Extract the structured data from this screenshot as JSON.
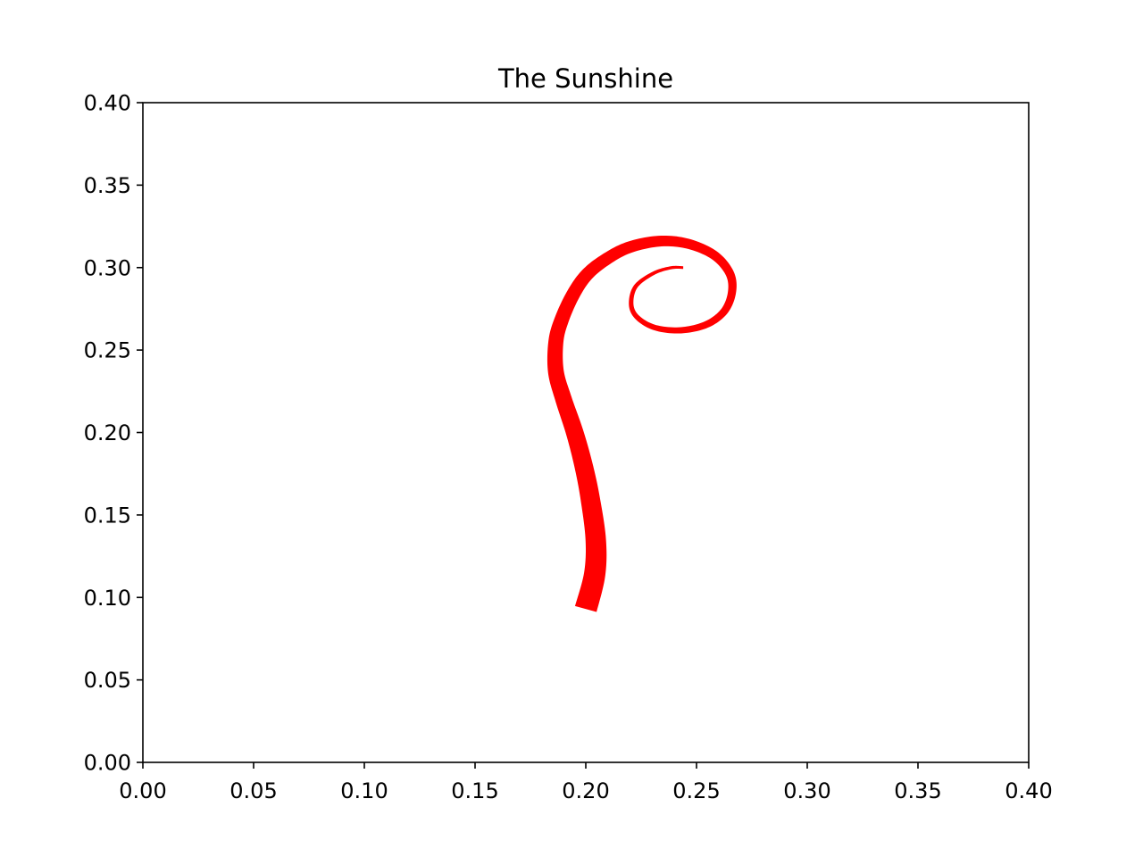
{
  "chart_data": {
    "type": "line",
    "title": "The Sunshine",
    "xlabel": "",
    "ylabel": "",
    "xlim": [
      0.0,
      0.4
    ],
    "ylim": [
      0.0,
      0.4
    ],
    "x_ticks": [
      "0.00",
      "0.05",
      "0.10",
      "0.15",
      "0.20",
      "0.25",
      "0.30",
      "0.35",
      "0.40"
    ],
    "y_ticks": [
      "0.00",
      "0.05",
      "0.10",
      "0.15",
      "0.20",
      "0.25",
      "0.30",
      "0.35",
      "0.40"
    ],
    "grid": false,
    "legend": "none",
    "series": [
      {
        "color": "#ff0000",
        "style": "variable-width stroke, thick at start tapering to thin at end",
        "points": [
          [
            0.2,
            0.093
          ],
          [
            0.204,
            0.114
          ],
          [
            0.2045,
            0.135
          ],
          [
            0.202,
            0.16
          ],
          [
            0.199,
            0.18
          ],
          [
            0.195,
            0.2
          ],
          [
            0.19,
            0.22
          ],
          [
            0.1865,
            0.237
          ],
          [
            0.1865,
            0.255
          ],
          [
            0.189,
            0.268
          ],
          [
            0.194,
            0.283
          ],
          [
            0.2,
            0.295
          ],
          [
            0.208,
            0.304
          ],
          [
            0.219,
            0.312
          ],
          [
            0.233,
            0.316
          ],
          [
            0.246,
            0.3145
          ],
          [
            0.258,
            0.3075
          ],
          [
            0.265,
            0.2965
          ],
          [
            0.266,
            0.285
          ],
          [
            0.2625,
            0.2735
          ],
          [
            0.2545,
            0.2655
          ],
          [
            0.243,
            0.262
          ],
          [
            0.2315,
            0.2635
          ],
          [
            0.2235,
            0.2695
          ],
          [
            0.2205,
            0.2775
          ],
          [
            0.2225,
            0.2885
          ],
          [
            0.2305,
            0.2965
          ],
          [
            0.2385,
            0.2999
          ],
          [
            0.244,
            0.3
          ]
        ]
      }
    ]
  }
}
